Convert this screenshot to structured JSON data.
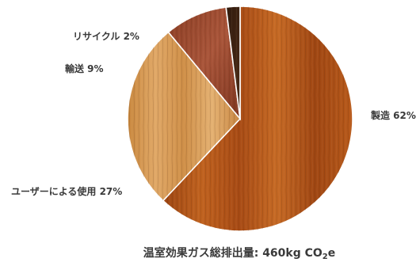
{
  "chart_data": {
    "type": "pie",
    "slices": [
      {
        "label": "製造 62%",
        "value": 62,
        "color": "#b3541c",
        "texture": "wood-orange"
      },
      {
        "label": "ユーザーによる使用 27%",
        "value": 27,
        "color": "#d69a52",
        "texture": "wood-light"
      },
      {
        "label": "輸送 9%",
        "value": 9,
        "color": "#9a4a2c",
        "texture": "wood-red"
      },
      {
        "label": "リサイクル 2%",
        "value": 2,
        "color": "#3e2414",
        "texture": "wood-dark"
      }
    ],
    "total": {
      "prefix": "温室効果ガス総排出量: 460kg CO",
      "subscript": "2",
      "suffix": "e"
    }
  }
}
